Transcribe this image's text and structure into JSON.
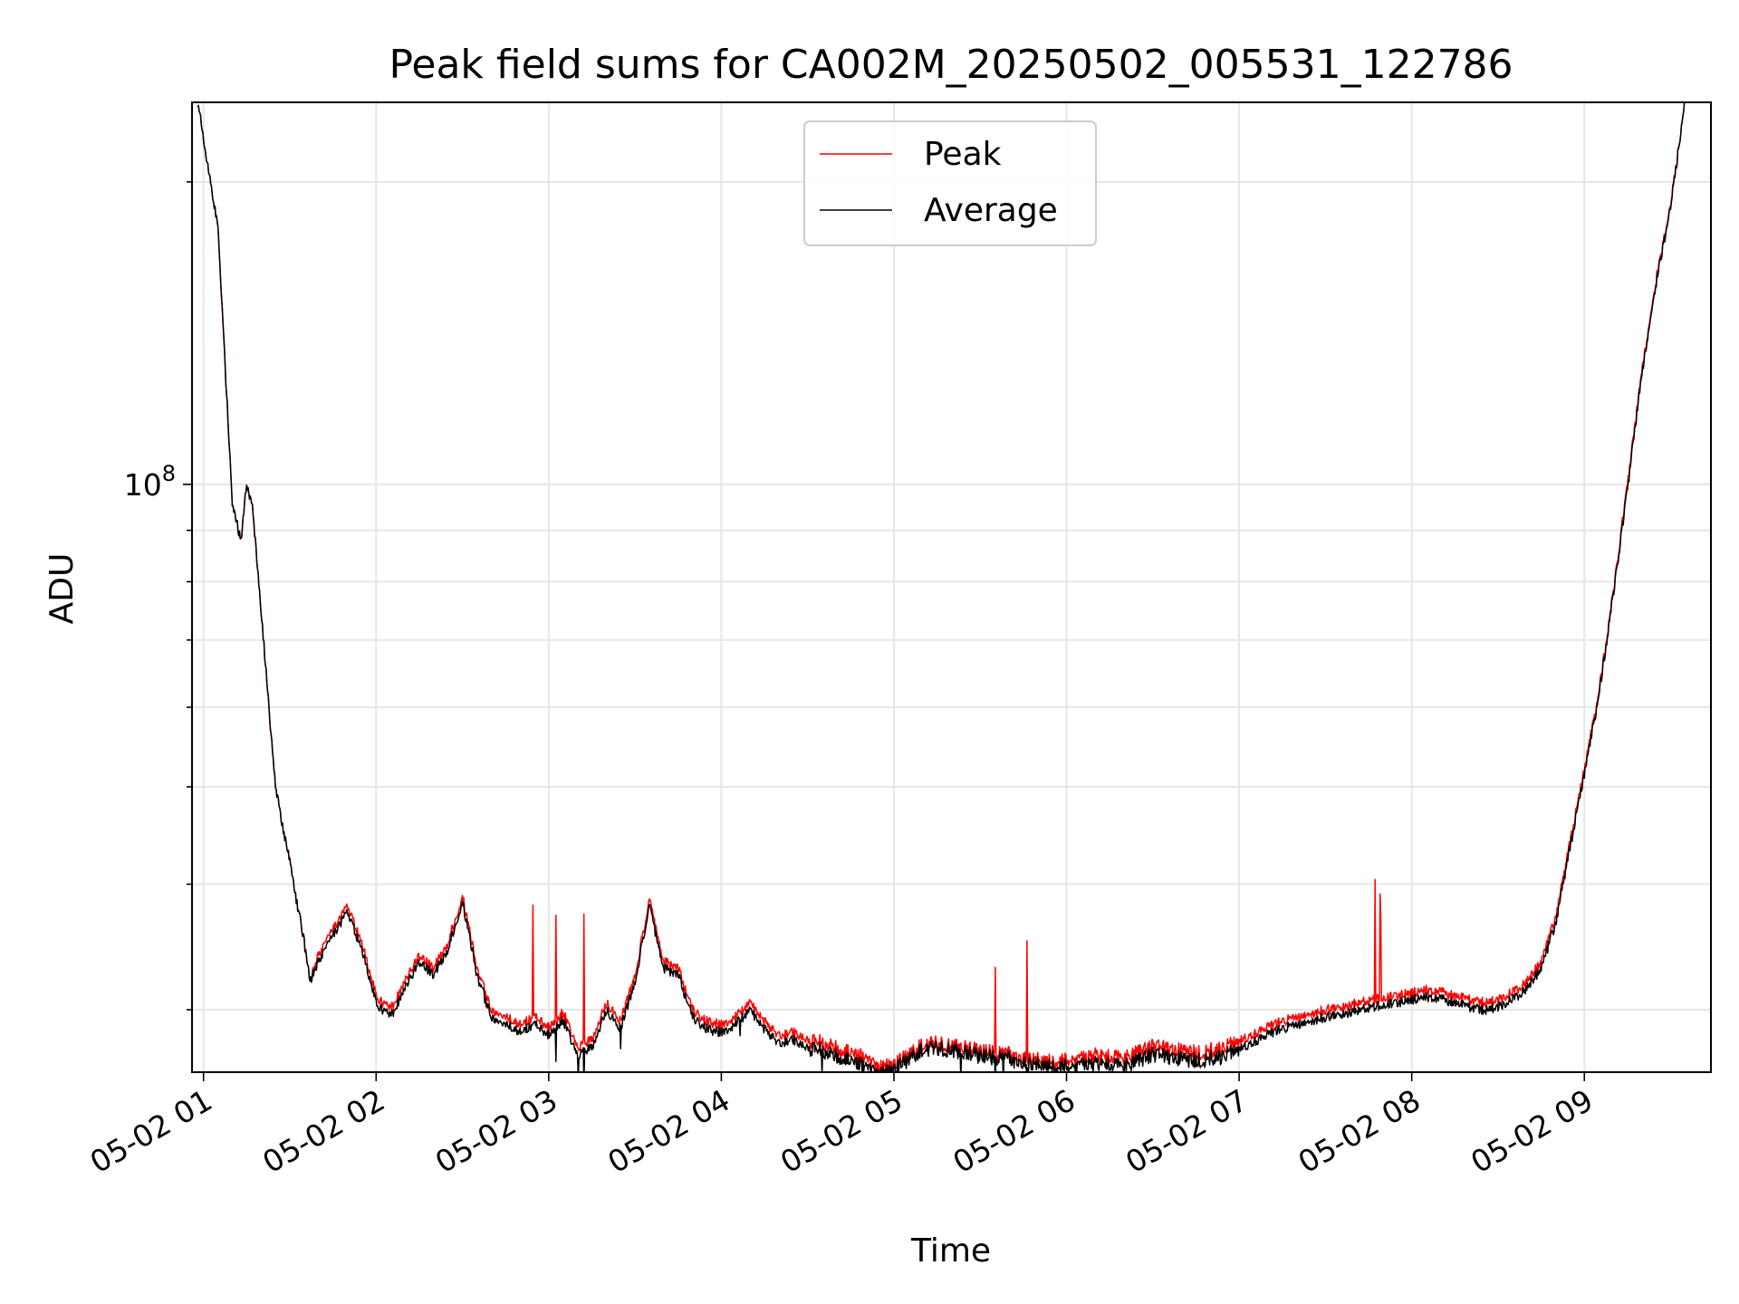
{
  "chart_data": {
    "type": "line",
    "title": "Peak field sums for CA002M_20250502_005531_122786",
    "xlabel": "Time",
    "ylabel": "ADU",
    "yscale": "log",
    "grid": true,
    "legend_position": "upper center",
    "x_ticks": [
      "05-02 01",
      "05-02 02",
      "05-02 03",
      "05-02 04",
      "05-02 05",
      "05-02 06",
      "05-02 07",
      "05-02 08",
      "05-02 09"
    ],
    "y_tick_labels": [
      {
        "value": 100000000,
        "base": "10",
        "exponent": "8"
      }
    ],
    "xlim": [
      "2025-05-02 00:56",
      "2025-05-02 09:44"
    ],
    "ylim": [
      26000000,
      240000000
    ],
    "series": [
      {
        "name": "Peak",
        "color": "#ff0000",
        "x": [
          "00:58",
          "01:05",
          "01:10",
          "01:13",
          "01:15",
          "01:17",
          "01:20",
          "01:25",
          "01:30",
          "01:35",
          "01:37",
          "01:40",
          "01:45",
          "01:50",
          "01:55",
          "02:00",
          "02:05",
          "02:10",
          "02:15",
          "02:20",
          "02:25",
          "02:30",
          "02:35",
          "02:40",
          "02:45",
          "02:50",
          "02:55",
          "03:00",
          "03:05",
          "03:10",
          "03:15",
          "03:20",
          "03:25",
          "03:30",
          "03:35",
          "03:40",
          "03:45",
          "03:50",
          "03:55",
          "04:00",
          "04:05",
          "04:10",
          "04:15",
          "04:20",
          "04:25",
          "04:30",
          "04:35",
          "04:40",
          "04:45",
          "04:50",
          "04:55",
          "05:00",
          "05:05",
          "05:10",
          "05:15",
          "05:20",
          "05:25",
          "05:30",
          "05:35",
          "05:40",
          "05:45",
          "05:50",
          "05:55",
          "06:00",
          "06:05",
          "06:10",
          "06:15",
          "06:20",
          "06:25",
          "06:30",
          "06:35",
          "06:40",
          "06:45",
          "06:50",
          "06:55",
          "07:00",
          "07:05",
          "07:10",
          "07:15",
          "07:20",
          "07:25",
          "07:30",
          "07:35",
          "07:40",
          "07:45",
          "07:50",
          "07:55",
          "08:00",
          "08:05",
          "08:10",
          "08:15",
          "08:20",
          "08:25",
          "08:30",
          "08:35",
          "08:40",
          "08:45",
          "08:50",
          "08:55",
          "09:00",
          "09:05",
          "09:10",
          "09:15",
          "09:20",
          "09:25",
          "09:30",
          "09:35"
        ],
        "y": [
          240000000,
          180000000,
          96000000,
          88000000,
          100000000,
          95000000,
          75000000,
          50000000,
          42000000,
          35000000,
          32000000,
          34000000,
          36000000,
          38000000,
          35000000,
          31000000,
          30000000,
          32000000,
          34000000,
          33000000,
          35000000,
          39000000,
          33000000,
          30000000,
          29500000,
          29000000,
          29500000,
          28800000,
          29800000,
          27500000,
          28000000,
          30500000,
          29200000,
          32500000,
          38500000,
          33500000,
          33000000,
          30000000,
          29200000,
          29000000,
          29500000,
          30500000,
          29200000,
          28200000,
          28500000,
          28000000,
          27800000,
          27500000,
          27200000,
          26800000,
          26300000,
          26600000,
          27000000,
          27700000,
          27800000,
          27600000,
          27500000,
          27300000,
          27200000,
          27100000,
          26900000,
          26800000,
          26700000,
          26700000,
          26800000,
          27000000,
          26900000,
          26800000,
          27200000,
          27600000,
          27400000,
          27300000,
          27200000,
          27300000,
          27500000,
          27900000,
          28300000,
          28900000,
          29200000,
          29500000,
          29700000,
          30000000,
          30200000,
          30400000,
          30600000,
          30800000,
          31000000,
          31200000,
          31400000,
          31300000,
          31000000,
          30700000,
          30500000,
          30700000,
          31200000,
          32000000,
          33500000,
          37000000,
          44000000,
          52000000,
          62000000,
          78000000,
          100000000,
          130000000,
          160000000,
          190000000,
          240000000
        ]
      },
      {
        "name": "Average",
        "color": "#000000",
        "x": [
          "00:58",
          "01:05",
          "01:10",
          "01:13",
          "01:15",
          "01:17",
          "01:20",
          "01:25",
          "01:30",
          "01:35",
          "01:37",
          "01:40",
          "01:45",
          "01:50",
          "01:55",
          "02:00",
          "02:05",
          "02:10",
          "02:15",
          "02:20",
          "02:25",
          "02:30",
          "02:35",
          "02:40",
          "02:45",
          "02:50",
          "02:55",
          "03:00",
          "03:05",
          "03:10",
          "03:15",
          "03:20",
          "03:25",
          "03:30",
          "03:35",
          "03:40",
          "03:45",
          "03:50",
          "03:55",
          "04:00",
          "04:05",
          "04:10",
          "04:15",
          "04:20",
          "04:25",
          "04:30",
          "04:35",
          "04:40",
          "04:45",
          "04:50",
          "04:55",
          "05:00",
          "05:05",
          "05:10",
          "05:15",
          "05:20",
          "05:25",
          "05:30",
          "05:35",
          "05:40",
          "05:45",
          "05:50",
          "05:55",
          "06:00",
          "06:05",
          "06:10",
          "06:15",
          "06:20",
          "06:25",
          "06:30",
          "06:35",
          "06:40",
          "06:45",
          "06:50",
          "06:55",
          "07:00",
          "07:05",
          "07:10",
          "07:15",
          "07:20",
          "07:25",
          "07:30",
          "07:35",
          "07:40",
          "07:45",
          "07:50",
          "07:55",
          "08:00",
          "08:05",
          "08:10",
          "08:15",
          "08:20",
          "08:25",
          "08:30",
          "08:35",
          "08:40",
          "08:45",
          "08:50",
          "08:55",
          "09:00",
          "09:05",
          "09:10",
          "09:15",
          "09:20",
          "09:25",
          "09:30",
          "09:35"
        ],
        "y": [
          240000000,
          180000000,
          96000000,
          88000000,
          100000000,
          95000000,
          75000000,
          50000000,
          42000000,
          35000000,
          32000000,
          33500000,
          35500000,
          37500000,
          34500000,
          30500000,
          29500000,
          31500000,
          33500000,
          32500000,
          34500000,
          38500000,
          32500000,
          29500000,
          29000000,
          28500000,
          29000000,
          28300000,
          29300000,
          27000000,
          27500000,
          30000000,
          28700000,
          32000000,
          38000000,
          33000000,
          32500000,
          29500000,
          28700000,
          28500000,
          29000000,
          30000000,
          28700000,
          27700000,
          28000000,
          27500000,
          27300000,
          27000000,
          26700000,
          26300000,
          25900000,
          26300000,
          26700000,
          27400000,
          27500000,
          27300000,
          27200000,
          27000000,
          26900000,
          26800000,
          26600000,
          26500000,
          26400000,
          26300000,
          26400000,
          26500000,
          26400000,
          26300000,
          26700000,
          27100000,
          26900000,
          26800000,
          26700000,
          26800000,
          27000000,
          27400000,
          27800000,
          28400000,
          28700000,
          29000000,
          29200000,
          29500000,
          29700000,
          29900000,
          30100000,
          30300000,
          30500000,
          30700000,
          30900000,
          30800000,
          30500000,
          30200000,
          30000000,
          30200000,
          30700000,
          31500000,
          33000000,
          36500000,
          43500000,
          51500000,
          61500000,
          77500000,
          99000000,
          129000000,
          159000000,
          189000000,
          240000000
        ]
      }
    ]
  }
}
